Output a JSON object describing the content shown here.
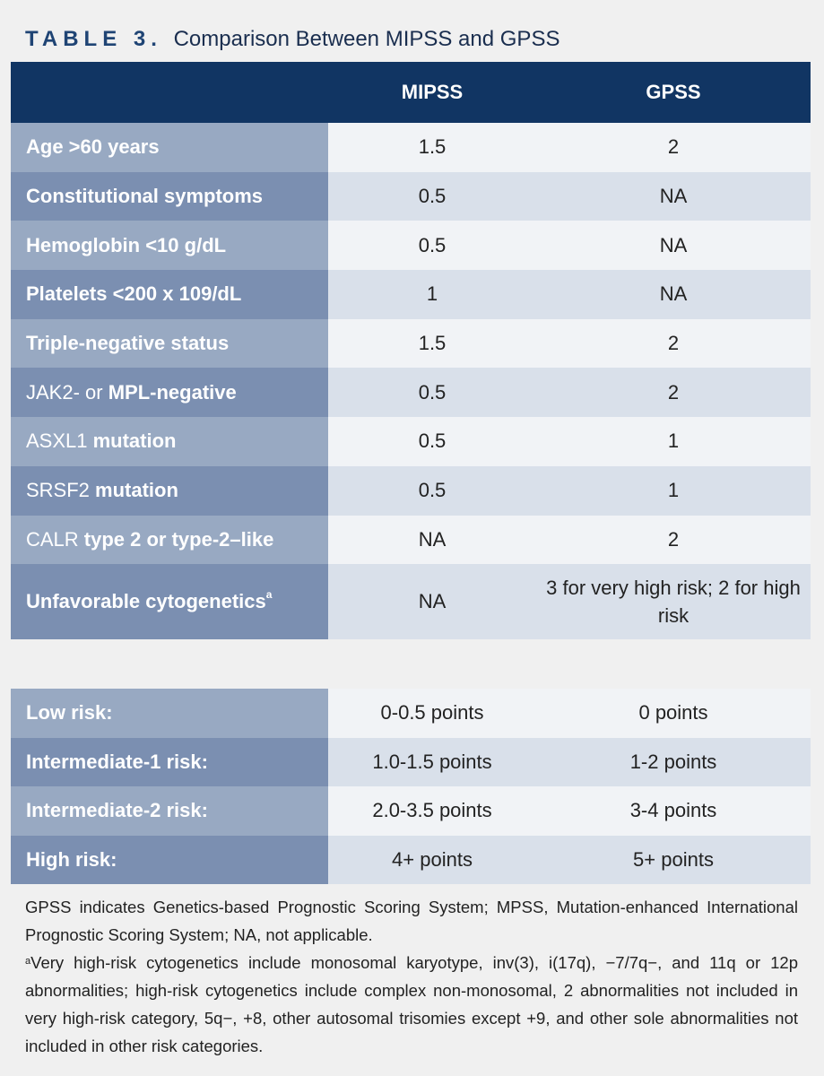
{
  "title": {
    "label": "TABLE 3.",
    "text": "Comparison Between MIPSS and GPSS"
  },
  "table": {
    "headers": [
      "",
      "MIPSS",
      "GPSS"
    ],
    "rows": [
      {
        "plain": "",
        "bold": "Age >60 years",
        "sup": "",
        "mipss": "1.5",
        "gpss": "2"
      },
      {
        "plain": "",
        "bold": "Constitutional symptoms",
        "sup": "",
        "mipss": "0.5",
        "gpss": "NA"
      },
      {
        "plain": "",
        "bold": "Hemoglobin <10 g/dL",
        "sup": "",
        "mipss": "0.5",
        "gpss": "NA"
      },
      {
        "plain": "",
        "bold": "Platelets <200 x 109/dL",
        "sup": "",
        "mipss": "1",
        "gpss": "NA"
      },
      {
        "plain": "",
        "bold": "Triple-negative status",
        "sup": "",
        "mipss": "1.5",
        "gpss": "2"
      },
      {
        "plain": "JAK2- or ",
        "bold": "MPL-negative",
        "sup": "",
        "mipss": "0.5",
        "gpss": "2"
      },
      {
        "plain": "ASXL1 ",
        "bold": "mutation",
        "sup": "",
        "mipss": "0.5",
        "gpss": "1"
      },
      {
        "plain": "SRSF2 ",
        "bold": "mutation",
        "sup": "",
        "mipss": "0.5",
        "gpss": "1"
      },
      {
        "plain": "CALR ",
        "bold": "type 2 or type-2–like",
        "sup": "",
        "mipss": "NA",
        "gpss": "2"
      },
      {
        "plain": "",
        "bold": "Unfavorable cytogenetics",
        "sup": "a",
        "mipss": "NA",
        "gpss": "3 for very high risk; 2 for high risk"
      }
    ]
  },
  "risk_table": {
    "rows": [
      {
        "label": "Low risk:",
        "mipss": "0-0.5 points",
        "gpss": "0 points"
      },
      {
        "label": "Intermediate-1 risk:",
        "mipss": "1.0-1.5 points",
        "gpss": "1-2 points"
      },
      {
        "label": "Intermediate-2 risk:",
        "mipss": "2.0-3.5 points",
        "gpss": "3-4 points"
      },
      {
        "label": "High risk:",
        "mipss": "4+ points",
        "gpss": "5+ points"
      }
    ]
  },
  "footnote": {
    "abbreviations": "GPSS indicates Genetics-based Prognostic Scoring System; MPSS, Mutation-enhanced International Prognostic Scoring System; NA, not applicable.",
    "marker": "a",
    "cytogenetics": "Very high-risk cytogenetics include monosomal karyotype, inv(3), i(17q), −7/7q−, and 11q or 12p abnormalities; high-risk cytogenetics include complex non-monosomal, 2 abnormalities not included in very high-risk category, 5q−, +8, other autosomal trisomies except +9, and other sole abnormalities not included in other risk categories."
  },
  "colors": {
    "header_bg": "#113563",
    "label_odd": "#98a9c2",
    "label_even": "#7b8fb1",
    "value_odd": "#f1f3f6",
    "value_even": "#d9e0ea"
  }
}
